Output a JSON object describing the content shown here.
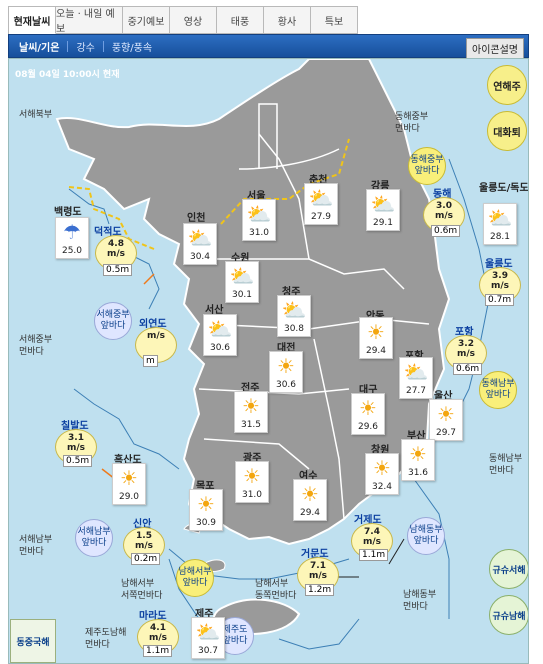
{
  "tabs": [
    {
      "label": "현재날씨",
      "selected": true
    },
    {
      "label": "오늘 · 내일 예보"
    },
    {
      "label": "중기예보"
    },
    {
      "label": "영상"
    },
    {
      "label": "태풍"
    },
    {
      "label": "황사"
    },
    {
      "label": "특보"
    }
  ],
  "subnav": {
    "items": [
      "날씨/기온",
      "강수",
      "풍향/풍속"
    ],
    "icon_button": "아이콘설명"
  },
  "map": {
    "timestamp": "08월 04일 10:00시 현재",
    "seas": {
      "seohae_bukbu": "서해북부",
      "seohae_jungbu": [
        "서해중부",
        "먼바다"
      ],
      "seohae_nambu": [
        "서해남부",
        "먼바다"
      ],
      "donghae_jungbu": [
        "동해중부",
        "먼바다"
      ],
      "donghae_nambu": [
        "동해남부",
        "먼바다"
      ],
      "namhae_seobu_w": [
        "남해서부",
        "서쪽먼바다"
      ],
      "namhae_seobu_e": [
        "남해서부",
        "동쪽먼바다"
      ],
      "namhae_dongbu": [
        "남해동부",
        "먼바다"
      ],
      "jeju_namhae": [
        "제주도남해",
        "먼바다"
      ]
    },
    "cities": {
      "baengnyeongdo": {
        "name": "백령도",
        "temp": "25.0"
      },
      "incheon": {
        "name": "인천",
        "temp": "30.4"
      },
      "seoul": {
        "name": "서울",
        "temp": "31.0"
      },
      "chuncheon": {
        "name": "춘천",
        "temp": "27.9"
      },
      "gangneung": {
        "name": "강릉",
        "temp": "29.1"
      },
      "ulleungdo": {
        "name": "울릉도/독도",
        "temp": "28.1"
      },
      "suwon": {
        "name": "수원",
        "temp": "30.1"
      },
      "cheongju": {
        "name": "청주",
        "temp": "30.8"
      },
      "seosan": {
        "name": "서산",
        "temp": "30.6"
      },
      "andong": {
        "name": "안동",
        "temp": "29.4"
      },
      "daejeon": {
        "name": "대전",
        "temp": "30.6"
      },
      "pohang": {
        "name": "포항",
        "temp": "27.7"
      },
      "jeonju": {
        "name": "전주",
        "temp": "31.5"
      },
      "daegu": {
        "name": "대구",
        "temp": "29.6"
      },
      "ulsan": {
        "name": "울산",
        "temp": "29.7"
      },
      "heuksando": {
        "name": "흑산도",
        "temp": "29.0"
      },
      "gwangju": {
        "name": "광주",
        "temp": "31.0"
      },
      "busan": {
        "name": "부산",
        "temp": "31.6"
      },
      "changwon": {
        "name": "창원",
        "temp": "32.4"
      },
      "mokpo": {
        "name": "목포",
        "temp": "30.9"
      },
      "yeosu": {
        "name": "여수",
        "temp": "29.4"
      },
      "jeju": {
        "name": "제주",
        "temp": "30.7"
      }
    },
    "buoys": {
      "deokjeokdo": {
        "name": "덕적도",
        "wind": "4.8",
        "unit": "m/s",
        "wave": "0.5m"
      },
      "oeyeondo": {
        "name": "외연도",
        "wind": "",
        "unit": "m/s",
        "wave": "m"
      },
      "donghae": {
        "name": "동해",
        "wind": "3.0",
        "unit": "m/s",
        "wave": "0.6m"
      },
      "ulleungdo": {
        "name": "울릉도",
        "wind": "3.9",
        "unit": "m/s",
        "wave": "0.7m"
      },
      "pohang": {
        "name": "포항",
        "wind": "3.2",
        "unit": "m/s",
        "wave": "0.6m"
      },
      "chilbaldo": {
        "name": "칠발도",
        "wind": "3.1",
        "unit": "m/s",
        "wave": "0.5m"
      },
      "sinan": {
        "name": "신안",
        "wind": "1.5",
        "unit": "m/s",
        "wave": "0.2m"
      },
      "geojedo": {
        "name": "거제도",
        "wind": "7.4",
        "unit": "m/s",
        "wave": "1.1m"
      },
      "geomundo": {
        "name": "거문도",
        "wind": "7.1",
        "unit": "m/s",
        "wave": "1.2m"
      },
      "marado": {
        "name": "마라도",
        "wind": "4.1",
        "unit": "m/s",
        "wave": "1.1m"
      }
    },
    "warnings": {
      "seohae_jungbu": [
        "서해중부",
        "앞바다"
      ],
      "donghae_jungbu": [
        "동해중부",
        "앞바다"
      ],
      "donghae_nambu": [
        "동해남부",
        "앞바다"
      ],
      "seohae_nambu": [
        "서해남부",
        "앞바다"
      ],
      "namhae_seobu": [
        "남해서부",
        "앞바다"
      ],
      "namhae_dongbu": [
        "남해동부",
        "앞바다"
      ],
      "jejudo": [
        "제주도",
        "앞바다"
      ]
    },
    "buttons": {
      "yeonhaeju": "연해주",
      "daehwatoe": "대화퇴",
      "dongjung": "동중국해",
      "gyusu_seohae": "규슈서해",
      "gyusu_namhae": "규슈남해"
    }
  }
}
